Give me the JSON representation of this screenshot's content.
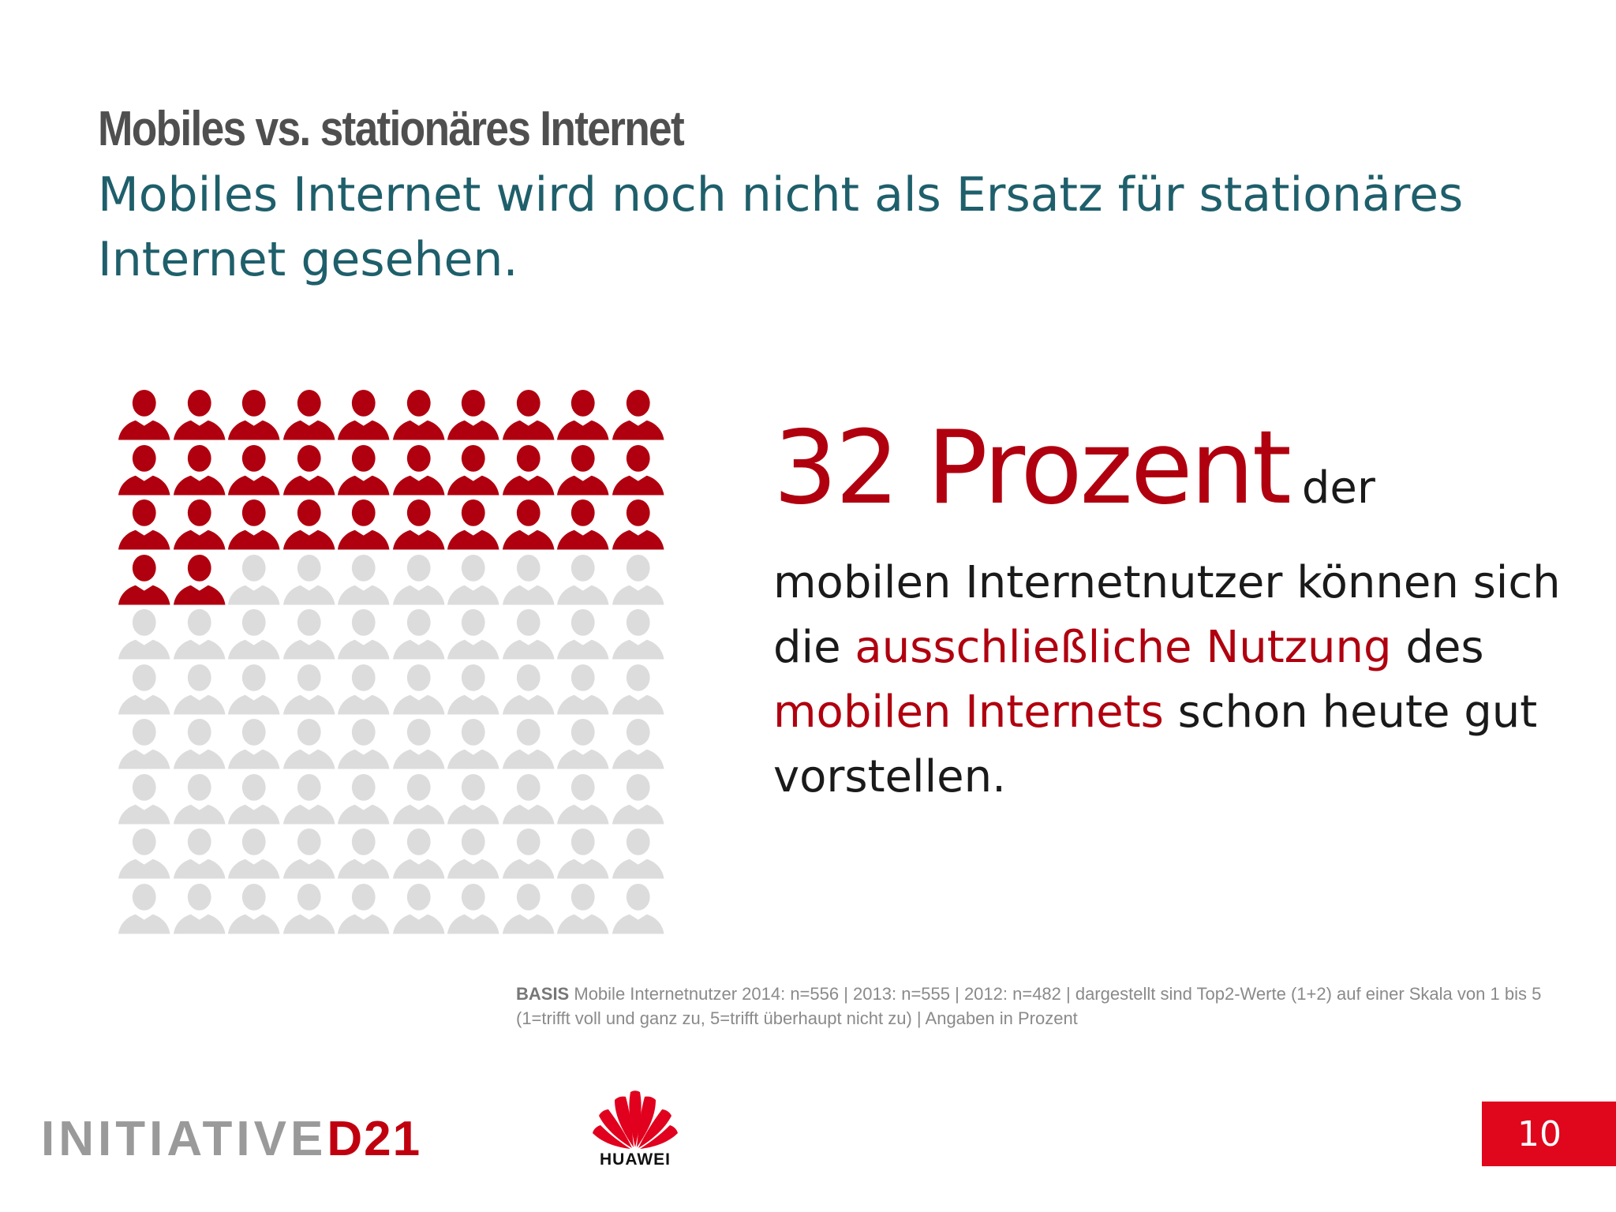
{
  "slide": {
    "title": "Mobiles vs. stationäres Internet",
    "subtitle": "Mobiles Internet wird noch nicht als Ersatz für stationäres Internet gesehen."
  },
  "stat": {
    "headline": "32 Prozent",
    "headline_suffix": "der",
    "text_part1": "mobilen Internetnutzer können sich die",
    "highlight1": "ausschließliche Nutzung",
    "text_part2": "des",
    "highlight2": "mobilen Internets",
    "text_part3": "schon heute gut vorstellen."
  },
  "pictogram": {
    "total": 100,
    "highlighted": 32,
    "columns": 10,
    "color_highlight": "#b0000f",
    "color_base": "#dcdcdc",
    "icon": "person-icon"
  },
  "footnote": {
    "label": "BASIS",
    "text": "Mobile Internetnutzer 2014: n=556 | 2013: n=555 | 2012: n=482 | dargestellt sind Top2-Werte (1+2) auf einer Skala von 1 bis 5 (1=trifft voll und ganz zu, 5=trifft überhaupt nicht zu) | Angaben in Prozent"
  },
  "logos": {
    "initiative": "INITIATIVE",
    "d21": "D21",
    "huawei": "HUAWEI"
  },
  "page_number": "10",
  "colors": {
    "accent_red": "#b0000f",
    "title_gray": "#4f4f4f",
    "subtitle_teal": "#1e5f6b",
    "page_box_red": "#e0061b"
  }
}
